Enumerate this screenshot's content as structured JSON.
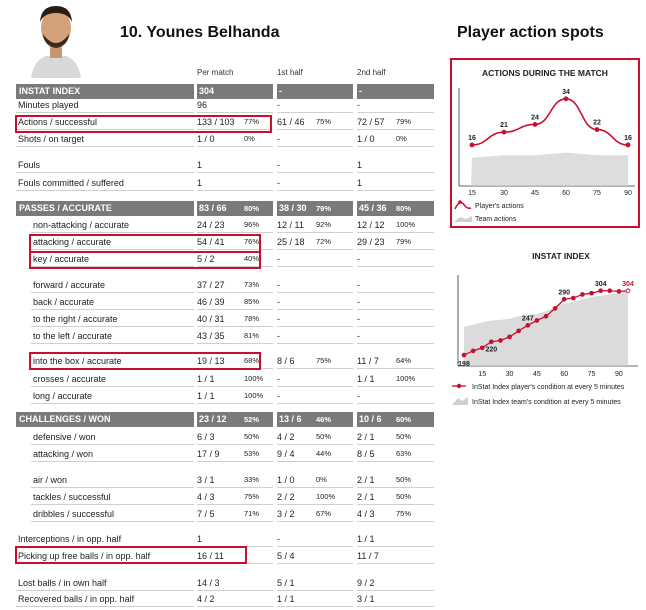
{
  "player": {
    "title": "10. Younes Belhanda",
    "avatar_icon": "player-photo-icon"
  },
  "columns": {
    "per_match": "Per match",
    "first_half": "1st half",
    "second_half": "2nd half"
  },
  "sections": [
    {
      "header": {
        "label": "INSTAT INDEX",
        "pm": "304",
        "pmp": "",
        "h1": "-",
        "h1p": "",
        "h2": "-",
        "h2p": ""
      },
      "rows": [
        {
          "label": "Minutes played",
          "pm": "96",
          "pmp": "",
          "h1": "-",
          "h1p": "",
          "h2": "-",
          "h2p": ""
        },
        {
          "label": "Actions / successful",
          "pm": "133 / 103",
          "pmp": "77%",
          "h1": "61 / 46",
          "h1p": "75%",
          "h2": "72 / 57",
          "h2p": "79%"
        },
        {
          "label": "Shots / on target",
          "pm": "1 / 0",
          "pmp": "0%",
          "h1": "-",
          "h1p": "",
          "h2": "1 / 0",
          "h2p": "0%"
        },
        {
          "label": "Fouls",
          "pm": "1",
          "pmp": "",
          "h1": "-",
          "h1p": "",
          "h2": "1",
          "h2p": ""
        },
        {
          "label": "Fouls committed / suffered",
          "pm": "1",
          "pmp": "",
          "h1": "-",
          "h1p": "",
          "h2": "1",
          "h2p": ""
        }
      ]
    },
    {
      "header": {
        "label": "PASSES / ACCURATE",
        "pm": "83 / 66",
        "pmp": "80%",
        "h1": "38 / 30",
        "h1p": "79%",
        "h2": "45 / 36",
        "h2p": "80%"
      },
      "rows": [
        {
          "label": "non-attacking / accurate",
          "pm": "24 / 23",
          "pmp": "96%",
          "h1": "12 / 11",
          "h1p": "92%",
          "h2": "12 / 12",
          "h2p": "100%"
        },
        {
          "label": "attacking / accurate",
          "pm": "54 / 41",
          "pmp": "76%",
          "h1": "25 / 18",
          "h1p": "72%",
          "h2": "29 / 23",
          "h2p": "79%"
        },
        {
          "label": "key / accurate",
          "pm": "5 / 2",
          "pmp": "40%",
          "h1": "-",
          "h1p": "",
          "h2": "-",
          "h2p": ""
        },
        {
          "label": "forward / accurate",
          "pm": "37 / 27",
          "pmp": "73%",
          "h1": "-",
          "h1p": "",
          "h2": "-",
          "h2p": ""
        },
        {
          "label": "back / accurate",
          "pm": "46 / 39",
          "pmp": "85%",
          "h1": "-",
          "h1p": "",
          "h2": "-",
          "h2p": ""
        },
        {
          "label": "to the right / accurate",
          "pm": "40 / 31",
          "pmp": "78%",
          "h1": "-",
          "h1p": "",
          "h2": "-",
          "h2p": ""
        },
        {
          "label": "to the left / accurate",
          "pm": "43 / 35",
          "pmp": "81%",
          "h1": "-",
          "h1p": "",
          "h2": "-",
          "h2p": ""
        },
        {
          "label": "into the box / accurate",
          "pm": "19 / 13",
          "pmp": "68%",
          "h1": "8 / 6",
          "h1p": "75%",
          "h2": "11 / 7",
          "h2p": "64%"
        },
        {
          "label": "crosses / accurate",
          "pm": "1 / 1",
          "pmp": "100%",
          "h1": "-",
          "h1p": "",
          "h2": "1 / 1",
          "h2p": "100%"
        },
        {
          "label": "long / accurate",
          "pm": "1 / 1",
          "pmp": "100%",
          "h1": "-",
          "h1p": "",
          "h2": "-",
          "h2p": ""
        }
      ]
    },
    {
      "header": {
        "label": "CHALLENGES / WON",
        "pm": "23 / 12",
        "pmp": "52%",
        "h1": "13 / 6",
        "h1p": "46%",
        "h2": "10 / 6",
        "h2p": "60%"
      },
      "rows": [
        {
          "label": "defensive / won",
          "pm": "6 / 3",
          "pmp": "50%",
          "h1": "4 / 2",
          "h1p": "50%",
          "h2": "2 / 1",
          "h2p": "50%"
        },
        {
          "label": "attacking / won",
          "pm": "17 / 9",
          "pmp": "53%",
          "h1": "9 / 4",
          "h1p": "44%",
          "h2": "8 / 5",
          "h2p": "63%"
        },
        {
          "label": "air / won",
          "pm": "3 / 1",
          "pmp": "33%",
          "h1": "1 / 0",
          "h1p": "0%",
          "h2": "2 / 1",
          "h2p": "50%"
        },
        {
          "label": "tackles / successful",
          "pm": "4 / 3",
          "pmp": "75%",
          "h1": "2 / 2",
          "h1p": "100%",
          "h2": "2 / 1",
          "h2p": "50%"
        },
        {
          "label": "dribbles / successful",
          "pm": "7 / 5",
          "pmp": "71%",
          "h1": "3 / 2",
          "h1p": "67%",
          "h2": "4 / 3",
          "h2p": "75%"
        },
        {
          "label": "Interceptions / in opp. half",
          "pm": "1",
          "pmp": "",
          "h1": "-",
          "h1p": "",
          "h2": "1 / 1",
          "h2p": ""
        },
        {
          "label": "Picking up free balls / in opp. half",
          "pm": "16 / 11",
          "pmp": "",
          "h1": "5 / 4",
          "h1p": "",
          "h2": "11 / 7",
          "h2p": ""
        },
        {
          "label": "Lost balls / in own half",
          "pm": "14 / 3",
          "pmp": "",
          "h1": "5 / 1",
          "h1p": "",
          "h2": "9 / 2",
          "h2p": ""
        },
        {
          "label": "Recovered balls / in opp. half",
          "pm": "4 / 2",
          "pmp": "",
          "h1": "1 / 1",
          "h1p": "",
          "h2": "3 / 1",
          "h2p": ""
        }
      ]
    }
  ],
  "right": {
    "title": "Player action spots"
  },
  "colors": {
    "accent": "#c8102e",
    "header_band": "#7a7a7a",
    "team_area": "#cfcfcf"
  },
  "chart_data": [
    {
      "type": "line",
      "title": "ACTIONS DURING THE MATCH",
      "x": [
        15,
        30,
        45,
        60,
        75,
        90
      ],
      "series": [
        {
          "name": "Player's actions",
          "values": [
            16,
            21,
            24,
            34,
            22,
            16
          ],
          "color": "#c8102e"
        },
        {
          "name": "Team actions",
          "values": [
            11,
            12,
            12,
            13,
            12,
            12
          ],
          "color": "#cfcfcf"
        }
      ],
      "data_labels": [
        "16",
        "21",
        "24",
        "34",
        "22",
        "16"
      ],
      "ylim": [
        0,
        40
      ],
      "grid": false,
      "legend": "bottom-left"
    },
    {
      "type": "line",
      "title": "INSTAT INDEX",
      "x": [
        5,
        10,
        15,
        20,
        25,
        30,
        35,
        40,
        45,
        50,
        55,
        60,
        65,
        70,
        75,
        80,
        85,
        90,
        95
      ],
      "series": [
        {
          "name": "InStat Index player's condition at every 5 minutes",
          "values": [
            198,
            205,
            210,
            220,
            222,
            228,
            238,
            247,
            255,
            262,
            275,
            290,
            292,
            298,
            300,
            304,
            304,
            303,
            304
          ],
          "color": "#c8102e"
        },
        {
          "name": "InStat Index team's condition at every 5 minutes",
          "values": [
            245,
            248,
            252,
            255,
            256,
            258,
            262,
            264,
            266,
            270,
            278,
            283,
            286,
            290,
            294,
            296,
            298,
            300,
            305
          ],
          "color": "#cfcfcf"
        }
      ],
      "x_ticks": [
        "15",
        "30",
        "45",
        "60",
        "75",
        "90"
      ],
      "data_labels": [
        {
          "x": 5,
          "label": "198"
        },
        {
          "x": 20,
          "label": "220"
        },
        {
          "x": 40,
          "label": "247"
        },
        {
          "x": 60,
          "label": "290"
        },
        {
          "x": 80,
          "label": "304"
        },
        {
          "x": 95,
          "label": "304"
        }
      ],
      "ylim": [
        180,
        330
      ],
      "grid": false,
      "legend": "bottom"
    }
  ]
}
